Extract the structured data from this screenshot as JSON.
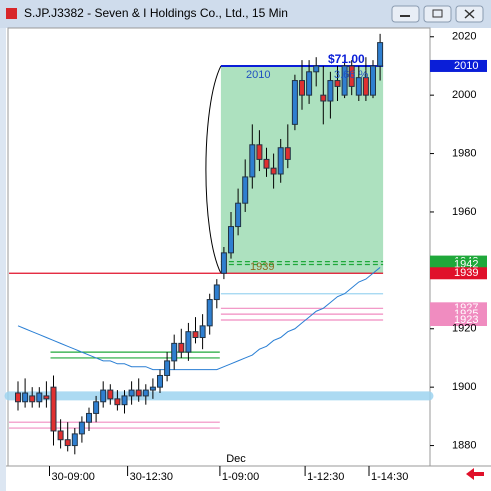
{
  "chart_data": {
    "type": "candlestick",
    "title": "S.JP.J3382 - Seven & I Holdings Co., Ltd., 15 Min",
    "x_annotation": "Dec",
    "categories": [
      null,
      null,
      null,
      null,
      null,
      "30-09:00",
      null,
      null,
      null,
      null,
      null,
      null,
      null,
      null,
      null,
      null,
      "30-12:30",
      null,
      null,
      null,
      null,
      null,
      null,
      null,
      null,
      null,
      null,
      null,
      null,
      "1-09:00",
      null,
      null,
      null,
      null,
      null,
      null,
      null,
      null,
      null,
      null,
      null,
      "1-12:30",
      null,
      null,
      null,
      null,
      null,
      null,
      null,
      null,
      "1-14:30",
      null
    ],
    "open": [
      1898,
      1895,
      1897,
      1895,
      1897,
      1900,
      1885,
      1882,
      1880,
      1884,
      1888,
      1891,
      1895,
      1899,
      1896,
      1894,
      1897,
      1899,
      1897,
      1899,
      1900,
      1904,
      1909,
      1915,
      1912,
      1919,
      1917,
      1921,
      1930,
      1939,
      1946,
      1955,
      1963,
      1972,
      1983,
      1978,
      1975,
      1973,
      1982,
      1990,
      2005,
      2000,
      2008,
      2000,
      1998,
      2005,
      2000,
      2010,
      2000,
      2006,
      2000,
      2010
    ],
    "high": [
      1902,
      1903,
      1900,
      1900,
      1902,
      1904,
      1889,
      1888,
      1886,
      1890,
      1893,
      1897,
      1902,
      1901,
      1899,
      1899,
      1902,
      1903,
      1901,
      1903,
      1906,
      1912,
      1918,
      1920,
      1922,
      1924,
      1925,
      1932,
      1937,
      1948,
      1960,
      1968,
      1978,
      1990,
      1988,
      1982,
      1980,
      1985,
      1990,
      2007,
      2012,
      2012,
      2013,
      2010,
      2008,
      2010,
      2012,
      2012,
      2010,
      2013,
      2012,
      2021
    ],
    "low": [
      1892,
      1893,
      1893,
      1893,
      1893,
      1880,
      1879,
      1878,
      1877,
      1881,
      1885,
      1888,
      1893,
      1894,
      1892,
      1891,
      1894,
      1895,
      1894,
      1896,
      1898,
      1902,
      1906,
      1910,
      1909,
      1915,
      1913,
      1918,
      1927,
      1937,
      1944,
      1952,
      1960,
      1968,
      1974,
      1972,
      1968,
      1970,
      1975,
      1988,
      1995,
      1997,
      2003,
      1990,
      1992,
      1998,
      1999,
      2000,
      1998,
      1998,
      1999,
      2005
    ],
    "close": [
      1895,
      1898,
      1895,
      1898,
      1896,
      1885,
      1882,
      1880,
      1884,
      1888,
      1891,
      1895,
      1899,
      1896,
      1894,
      1897,
      1899,
      1897,
      1899,
      1900,
      1904,
      1909,
      1915,
      1912,
      1919,
      1917,
      1921,
      1930,
      1935,
      1946,
      1955,
      1963,
      1972,
      1983,
      1978,
      1975,
      1973,
      1982,
      1978,
      2005,
      2000,
      2008,
      2010,
      1998,
      2005,
      2003,
      2010,
      2003,
      2006,
      2000,
      2010,
      2018
    ],
    "up_color": "#2f7fd0",
    "down_color": "#e03030",
    "ma": {
      "color": "#2a7fd4",
      "values": [
        1921,
        1920,
        1919,
        1918,
        1917,
        1916,
        1915,
        1914,
        1913,
        1912,
        1911,
        1910,
        1909,
        1909,
        1908,
        1908,
        1907,
        1907,
        1907,
        1906,
        1906,
        1906,
        1906,
        1906,
        1906,
        1906,
        1906,
        1906,
        1906,
        1907,
        1908,
        1909,
        1910,
        1911,
        1913,
        1914,
        1916,
        1917,
        1919,
        1920,
        1922,
        1924,
        1926,
        1927,
        1929,
        1931,
        1932,
        1934,
        1936,
        1937,
        1939,
        1941
      ]
    },
    "measure": {
      "high": 2010,
      "low": 1939,
      "change": "$71.00",
      "percent": "3.66 %",
      "color": "#9fdcb4"
    },
    "levels": [
      {
        "value": 2010,
        "color": "#0a1ed8",
        "from": 29,
        "to": 51,
        "tag": true
      },
      {
        "value": 1943,
        "color": "#1fa83a",
        "from": 29,
        "to": 51,
        "tag": true
      },
      {
        "value": 1942,
        "color": "#1fa83a",
        "from": 29,
        "to": 51,
        "tag": true
      },
      {
        "value": 1939,
        "color": "#e0102a",
        "from": 0,
        "to": 51,
        "tag": true
      },
      {
        "value": 1932,
        "color": "#9ed4f0",
        "from": 29,
        "to": 51,
        "tag": false
      },
      {
        "value": 1927,
        "color": "#f08cc0",
        "from": 29,
        "to": 51,
        "tag": true
      },
      {
        "value": 1925,
        "color": "#f08cc0",
        "from": 29,
        "to": 51,
        "tag": true
      },
      {
        "value": 1923,
        "color": "#f08cc0",
        "from": 29,
        "to": 51,
        "tag": true
      },
      {
        "value": 1912,
        "color": "#1fa83a",
        "from": 5,
        "to": 28,
        "tag": false
      },
      {
        "value": 1910,
        "color": "#1fa83a",
        "from": 5,
        "to": 28,
        "tag": false
      },
      {
        "value": 1888,
        "color": "#f08cc0",
        "from": 0,
        "to": 28,
        "tag": false
      },
      {
        "value": 1886,
        "color": "#f08cc0",
        "from": 0,
        "to": 28,
        "tag": false
      }
    ],
    "band": {
      "value": 1897,
      "color": "#9ed4f0"
    },
    "ylim": [
      1873,
      2023
    ],
    "yticks": [
      1880,
      1900,
      1920,
      1960,
      1980,
      2000,
      2020
    ]
  }
}
